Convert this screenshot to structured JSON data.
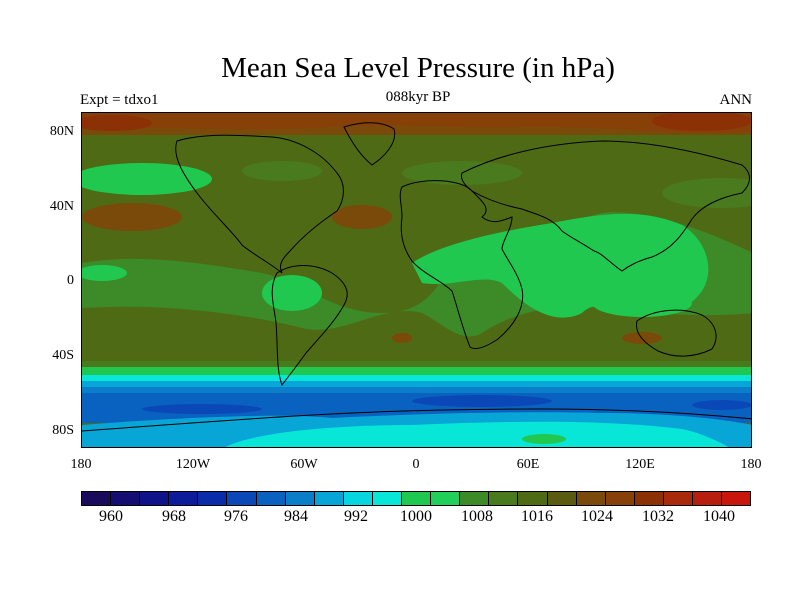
{
  "title": "Mean Sea Level Pressure (in hPa)",
  "experiment_label": "Expt = tdxo1",
  "period_label": "088kyr BP",
  "season_label": "ANN",
  "latitude_labels": [
    "80N",
    "40N",
    "0",
    "40S",
    "80S"
  ],
  "longitude_labels": [
    "180",
    "120W",
    "60W",
    "0",
    "60E",
    "120E",
    "180"
  ],
  "colorbar": {
    "colors": [
      "#1a0a5c",
      "#140e72",
      "#10128a",
      "#0c1c9a",
      "#0a2ca8",
      "#0a48b8",
      "#0a62c0",
      "#0a7ec8",
      "#08a6d6",
      "#06d6e0",
      "#08e6d8",
      "#20c850",
      "#20d05a",
      "#3c8a28",
      "#4a7a1e",
      "#4e6a14",
      "#5a5a10",
      "#7a4a0a",
      "#864008",
      "#8c3006",
      "#a82a0a",
      "#b81e0e",
      "#c8160c"
    ],
    "tick_labels": [
      "960",
      "968",
      "976",
      "984",
      "992",
      "1000",
      "1008",
      "1016",
      "1024",
      "1032",
      "1040"
    ]
  }
}
